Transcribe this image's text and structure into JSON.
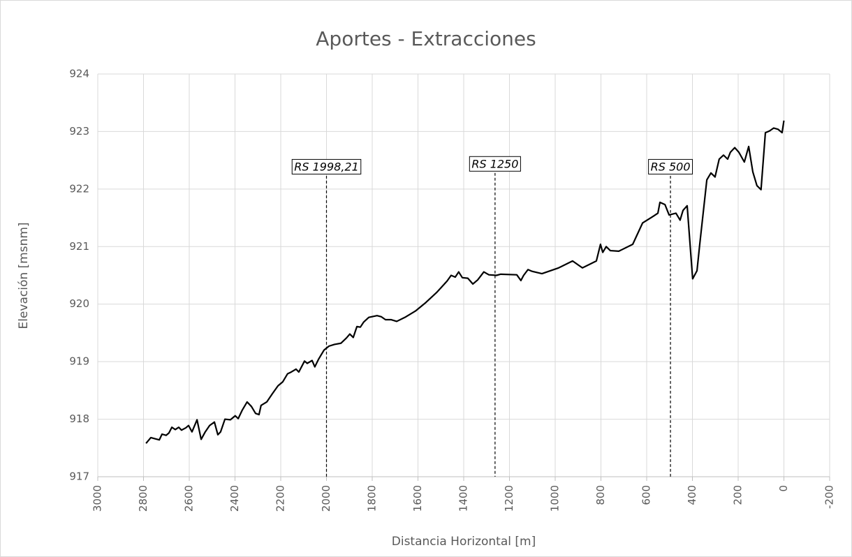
{
  "chart_data": {
    "type": "line",
    "title": "Aportes - Extracciones",
    "x_label": "Distancia Horizontal [m]",
    "y_label": "Elevación [msnm]",
    "xlim": [
      3000,
      -200
    ],
    "xticks": [
      3000,
      2800,
      2600,
      2400,
      2200,
      2000,
      1800,
      1600,
      1400,
      1200,
      1000,
      800,
      600,
      400,
      200,
      0,
      -200
    ],
    "ylim": [
      917,
      924
    ],
    "yticks": [
      917,
      918,
      919,
      920,
      921,
      922,
      923,
      924
    ],
    "grid": true,
    "series": [
      {
        "color": "#000000",
        "x": [
          2789,
          2768,
          2750,
          2731,
          2719,
          2701,
          2689,
          2676,
          2661,
          2646,
          2634,
          2615,
          2603,
          2588,
          2566,
          2548,
          2530,
          2511,
          2490,
          2475,
          2463,
          2444,
          2420,
          2399,
          2386,
          2368,
          2347,
          2328,
          2310,
          2295,
          2286,
          2261,
          2237,
          2212,
          2191,
          2170,
          2154,
          2133,
          2121,
          2096,
          2084,
          2063,
          2051,
          2035,
          2011,
          1989,
          1965,
          1937,
          1913,
          1898,
          1883,
          1867,
          1852,
          1837,
          1815,
          1779,
          1760,
          1742,
          1718,
          1693,
          1657,
          1611,
          1565,
          1519,
          1473,
          1455,
          1437,
          1422,
          1406,
          1382,
          1360,
          1339,
          1312,
          1290,
          1257,
          1238,
          1168,
          1150,
          1138,
          1119,
          1101,
          1058,
          985,
          924,
          881,
          820,
          802,
          792,
          777,
          759,
          722,
          661,
          618,
          582,
          570,
          551,
          542,
          520,
          502,
          472,
          454,
          441,
          423,
          399,
          380,
          368,
          337,
          319,
          301,
          283,
          264,
          246,
          234,
          215,
          197,
          173,
          154,
          136,
          118,
          100,
          81,
          63,
          45,
          26,
          8,
          0
        ],
        "values": [
          917.58,
          917.68,
          917.66,
          917.64,
          917.74,
          917.72,
          917.76,
          917.86,
          917.82,
          917.86,
          917.81,
          917.85,
          917.89,
          917.78,
          917.99,
          917.65,
          917.78,
          917.89,
          917.95,
          917.73,
          917.78,
          918.0,
          917.99,
          918.06,
          918.01,
          918.16,
          918.3,
          918.22,
          918.1,
          918.08,
          918.24,
          918.3,
          918.44,
          918.58,
          918.65,
          918.79,
          918.82,
          918.87,
          918.82,
          919.01,
          918.97,
          919.02,
          918.91,
          919.04,
          919.2,
          919.27,
          919.3,
          919.32,
          919.41,
          919.48,
          919.42,
          919.61,
          919.6,
          919.69,
          919.77,
          919.8,
          919.78,
          919.73,
          919.73,
          919.7,
          919.77,
          919.88,
          920.03,
          920.2,
          920.4,
          920.5,
          920.47,
          920.56,
          920.46,
          920.45,
          920.35,
          920.42,
          920.56,
          920.51,
          920.5,
          920.52,
          920.51,
          920.41,
          920.5,
          920.6,
          920.57,
          920.53,
          920.63,
          920.75,
          920.63,
          920.75,
          921.04,
          920.9,
          921.0,
          920.93,
          920.92,
          921.04,
          921.41,
          921.5,
          921.53,
          921.58,
          921.77,
          921.73,
          921.55,
          921.58,
          921.46,
          921.63,
          921.71,
          920.44,
          920.58,
          921.04,
          922.16,
          922.28,
          922.21,
          922.52,
          922.59,
          922.52,
          922.64,
          922.72,
          922.64,
          922.47,
          922.74,
          922.3,
          922.06,
          921.99,
          922.98,
          923.01,
          923.06,
          923.04,
          922.98,
          923.19
        ]
      }
    ],
    "annotations": [
      {
        "text": "RS 1998,21",
        "x": 2000,
        "y": 922.23
      },
      {
        "text": "RS 1250",
        "x": 1263,
        "y": 922.28
      },
      {
        "text": "RS 500",
        "x": 496,
        "y": 922.23
      }
    ]
  }
}
